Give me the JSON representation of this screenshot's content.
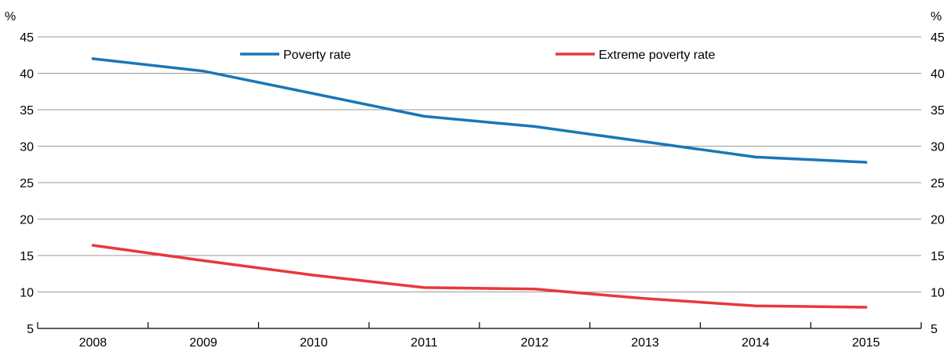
{
  "chart_data": {
    "type": "line",
    "x": [
      "2008",
      "2009",
      "2010",
      "2011",
      "2012",
      "2013",
      "2014",
      "2015"
    ],
    "series": [
      {
        "name": "Poverty rate",
        "color": "#1a76b8",
        "values": [
          42.0,
          40.3,
          37.2,
          34.1,
          32.7,
          30.6,
          28.5,
          27.8
        ]
      },
      {
        "name": "Extreme poverty rate",
        "color": "#e8383d",
        "values": [
          16.4,
          14.3,
          12.3,
          10.6,
          10.4,
          9.1,
          8.1,
          7.9
        ]
      }
    ],
    "y_unit_left": "%",
    "y_unit_right": "%",
    "ylim": [
      5,
      45
    ],
    "yticks": [
      5,
      10,
      15,
      20,
      25,
      30,
      35,
      40,
      45
    ],
    "grid": true,
    "legend_position": "top"
  }
}
